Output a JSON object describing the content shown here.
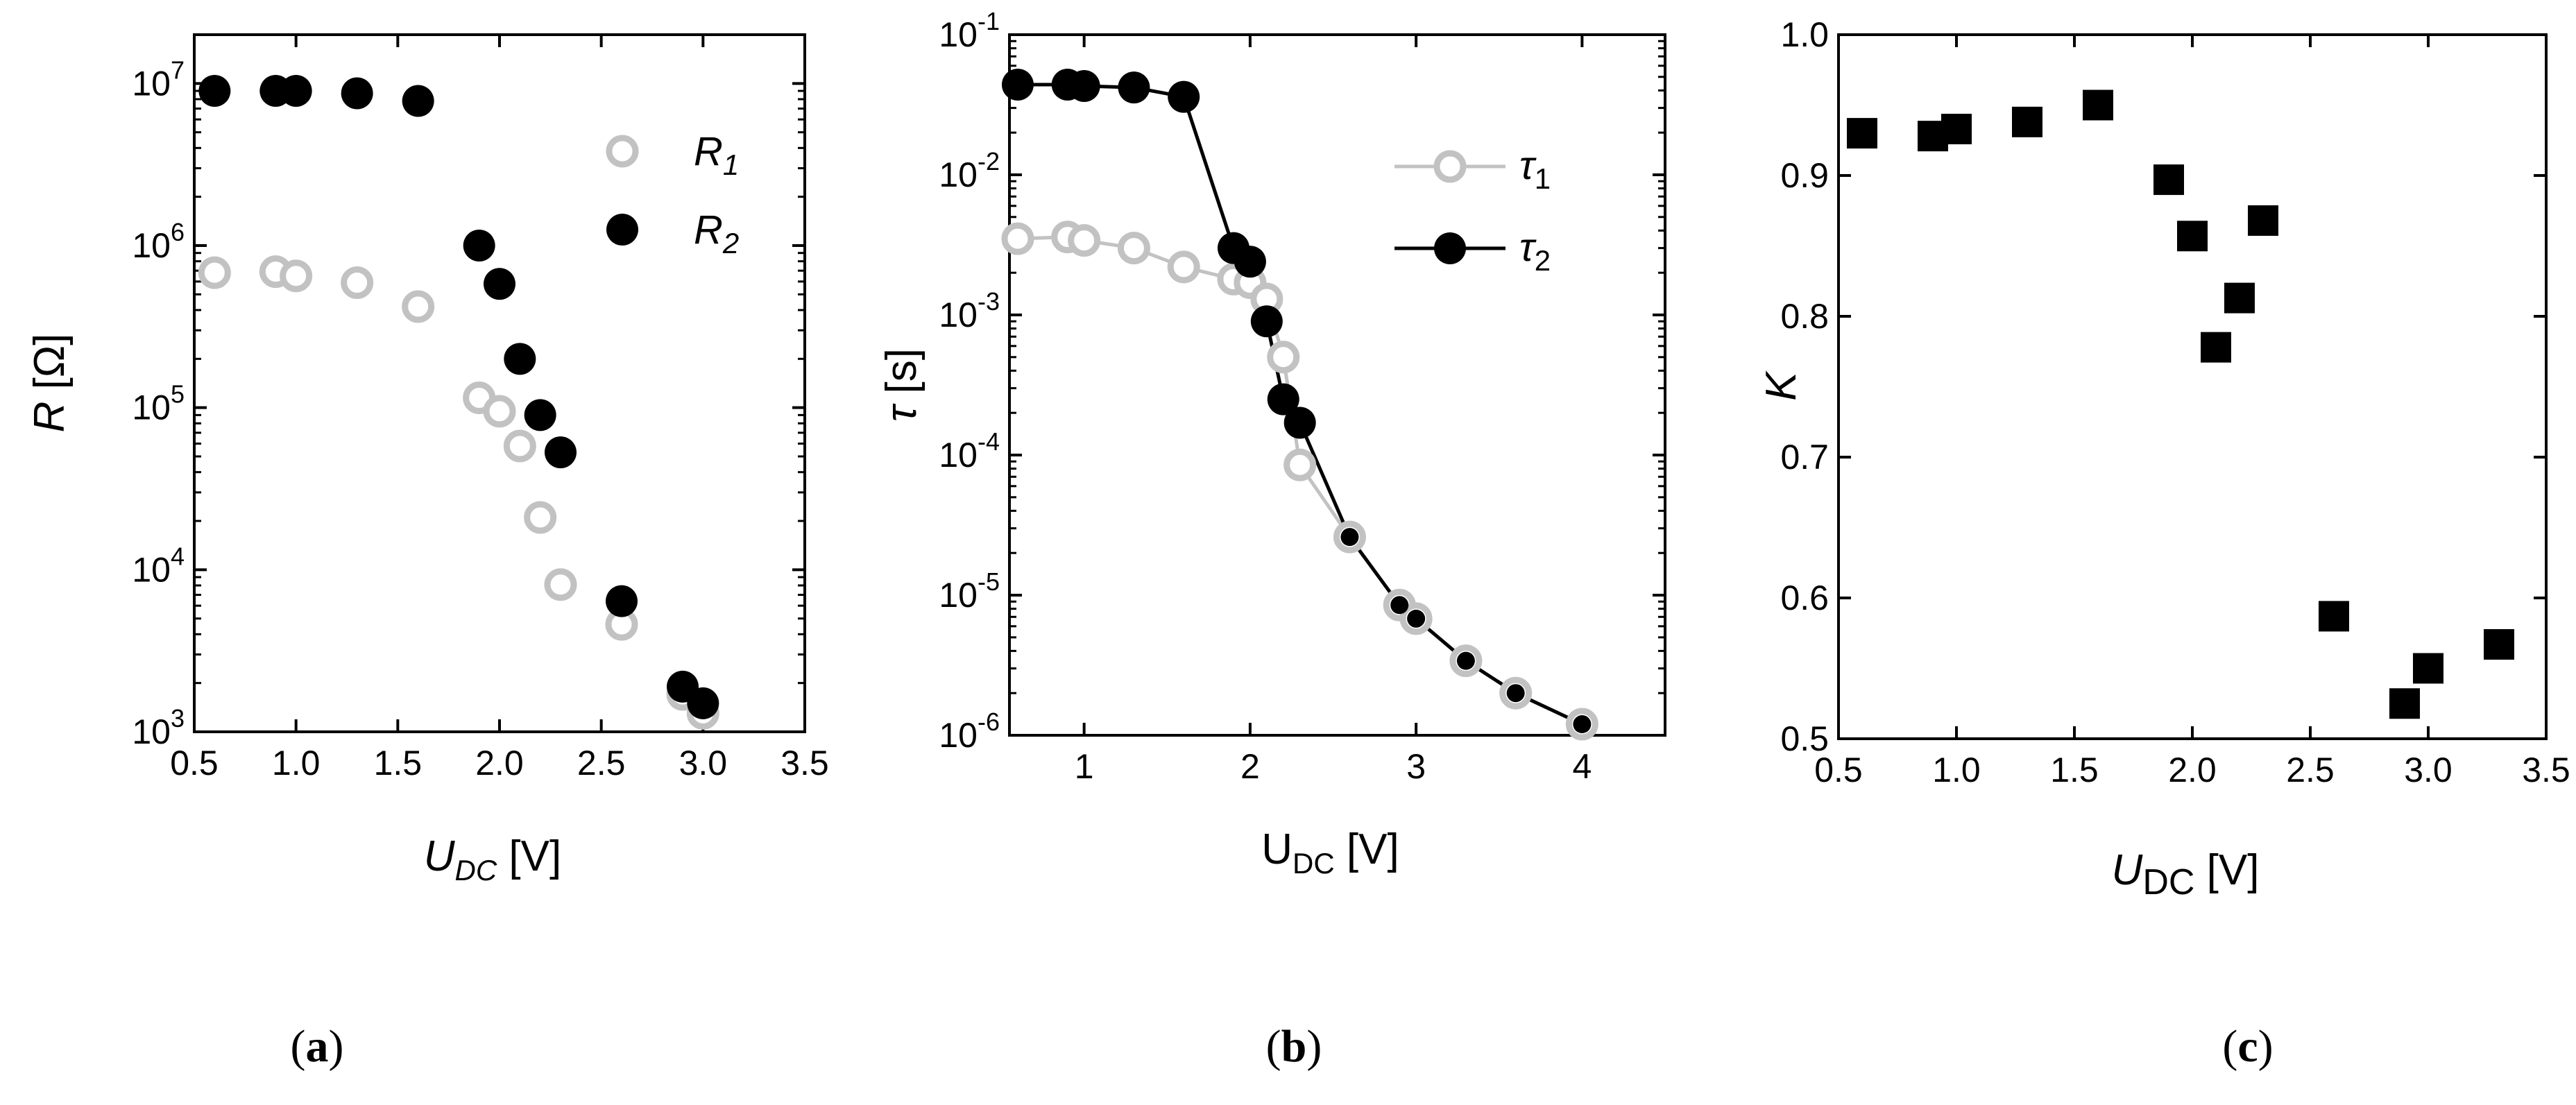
{
  "colors": {
    "gray": "#c2c2c2",
    "black": "#000000"
  },
  "chart_data": [
    {
      "panel": "a",
      "caption": "(a)",
      "type": "scatter",
      "yscale": "log",
      "xlim": [
        0.5,
        3.5
      ],
      "ylim": [
        1000,
        20000000
      ],
      "xticks": [
        "0.5",
        "1.0",
        "1.5",
        "2.0",
        "2.5",
        "3.0",
        "3.5"
      ],
      "xtick_values": [
        0.5,
        1.0,
        1.5,
        2.0,
        2.5,
        3.0,
        3.5
      ],
      "yticks": [
        {
          "base": "10",
          "exp": "3",
          "value": 1000
        },
        {
          "base": "10",
          "exp": "4",
          "value": 10000
        },
        {
          "base": "10",
          "exp": "5",
          "value": 100000
        },
        {
          "base": "10",
          "exp": "6",
          "value": 1000000
        },
        {
          "base": "10",
          "exp": "7",
          "value": 10000000
        }
      ],
      "xlabel": {
        "main": "U",
        "sub": "DC",
        "unit": " [V]"
      },
      "ylabel": {
        "main": "R",
        "unit": " [Ω]"
      },
      "series": [
        {
          "name": "R1",
          "label": "R",
          "sub": "1",
          "style": "open-circle",
          "color": "#c2c2c2",
          "x": [
            0.6,
            0.9,
            1.0,
            1.3,
            1.6,
            1.9,
            2.0,
            2.1,
            2.2,
            2.3,
            2.6,
            2.9,
            3.0
          ],
          "y": [
            680000,
            690000,
            650000,
            590000,
            420000,
            115000,
            95000,
            58000,
            21000,
            8100,
            4600,
            1700,
            1300
          ]
        },
        {
          "name": "R2",
          "label": "R",
          "sub": "2",
          "style": "filled-circle",
          "color": "#000000",
          "x": [
            0.6,
            0.9,
            1.0,
            1.3,
            1.6,
            1.9,
            2.0,
            2.1,
            2.2,
            2.3,
            2.6,
            2.9,
            3.0
          ],
          "y": [
            9000000,
            9000000,
            9000000,
            8700000,
            7800000,
            1000000,
            580000,
            200000,
            90000,
            53000,
            6400,
            1900,
            1500
          ]
        }
      ]
    },
    {
      "panel": "b",
      "caption": "(b)",
      "type": "line",
      "yscale": "log",
      "xlim": [
        0.55,
        4.5
      ],
      "ylim": [
        1e-06,
        0.1
      ],
      "xticks": [
        "1",
        "2",
        "3",
        "4"
      ],
      "xtick_values": [
        1,
        2,
        3,
        4
      ],
      "yticks": [
        {
          "base": "10",
          "exp": "-6",
          "value": 1e-06
        },
        {
          "base": "10",
          "exp": "-5",
          "value": 1e-05
        },
        {
          "base": "10",
          "exp": "-4",
          "value": 0.0001
        },
        {
          "base": "10",
          "exp": "-3",
          "value": 0.001
        },
        {
          "base": "10",
          "exp": "-2",
          "value": 0.01
        },
        {
          "base": "10",
          "exp": "-1",
          "value": 0.1
        }
      ],
      "xlabel": {
        "main": "U",
        "sub": "DC",
        "unit": " [V]"
      },
      "ylabel": {
        "main": "τ",
        "unit": " [s]"
      },
      "series": [
        {
          "name": "tau1",
          "label": "τ",
          "sub": "1",
          "style": "open-circle-line",
          "color": "#c2c2c2",
          "x": [
            0.6,
            0.9,
            1.0,
            1.3,
            1.6,
            1.9,
            2.0,
            2.1,
            2.2,
            2.3,
            2.6,
            2.9,
            3.0,
            3.3,
            3.6,
            4.0
          ],
          "y": [
            0.0035,
            0.0036,
            0.0034,
            0.003,
            0.0022,
            0.0018,
            0.0017,
            0.0013,
            0.0005,
            8.5e-05,
            2.6e-05,
            8.5e-06,
            6.8e-06,
            3.4e-06,
            2e-06,
            1.2e-06
          ]
        },
        {
          "name": "tau2",
          "label": "τ",
          "sub": "2",
          "style": "filled-circle-line",
          "color": "#000000",
          "x": [
            0.6,
            0.9,
            1.0,
            1.3,
            1.6,
            1.9,
            2.0,
            2.1,
            2.2,
            2.3,
            2.6,
            2.9,
            3.0,
            3.3,
            3.6,
            4.0
          ],
          "y": [
            0.044,
            0.044,
            0.043,
            0.042,
            0.036,
            0.003,
            0.0024,
            0.0009,
            0.00025,
            0.00017,
            2.6e-05,
            8.5e-06,
            6.8e-06,
            3.4e-06,
            2e-06,
            1.2e-06
          ]
        }
      ]
    },
    {
      "panel": "c",
      "caption": "(c)",
      "type": "scatter",
      "yscale": "linear",
      "xlim": [
        0.5,
        3.5
      ],
      "ylim": [
        0.5,
        1.0
      ],
      "xticks": [
        "0.5",
        "1.0",
        "1.5",
        "2.0",
        "2.5",
        "3.0",
        "3.5"
      ],
      "xtick_values": [
        0.5,
        1.0,
        1.5,
        2.0,
        2.5,
        3.0,
        3.5
      ],
      "yticks": [
        {
          "label": "0.5",
          "value": 0.5
        },
        {
          "label": "0.6",
          "value": 0.6
        },
        {
          "label": "0.7",
          "value": 0.7
        },
        {
          "label": "0.8",
          "value": 0.8
        },
        {
          "label": "0.9",
          "value": 0.9
        },
        {
          "label": "1.0",
          "value": 1.0
        }
      ],
      "xlabel": {
        "main": "U",
        "sub": "DC",
        "unit": " [V]"
      },
      "ylabel": {
        "main": "K",
        "unit": ""
      },
      "series": [
        {
          "name": "K",
          "style": "filled-square",
          "color": "#000000",
          "x": [
            0.6,
            0.9,
            1.0,
            1.3,
            1.6,
            1.9,
            2.0,
            2.1,
            2.2,
            2.3,
            2.6,
            2.9,
            3.0,
            3.3
          ],
          "y": [
            0.93,
            0.928,
            0.933,
            0.938,
            0.95,
            0.897,
            0.857,
            0.778,
            0.813,
            0.868,
            0.587,
            0.525,
            0.55,
            0.567
          ]
        }
      ]
    }
  ]
}
